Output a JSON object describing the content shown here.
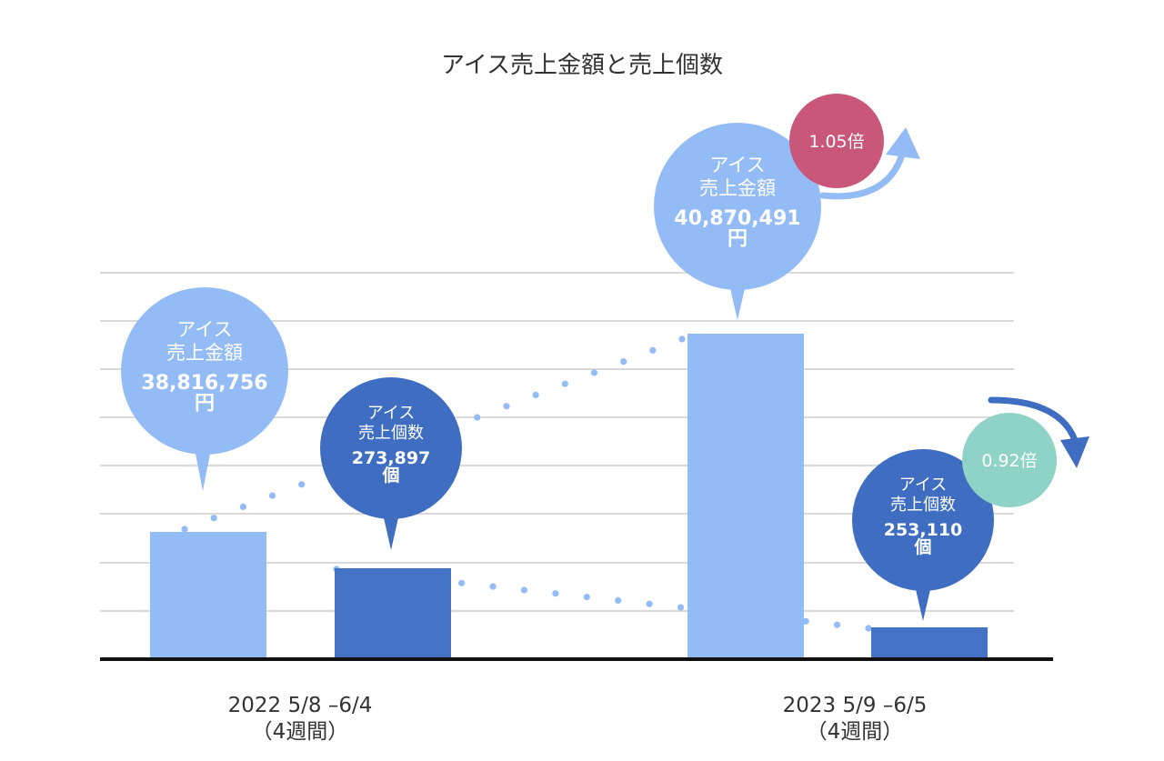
{
  "chart_data": {
    "type": "bar",
    "title": "アイス売上金額と売上個数",
    "categories": [
      {
        "line1": "2022 5/8 –6/4",
        "line2": "（4週間）"
      },
      {
        "line1": "2023 5/9 –6/5",
        "line2": "（4週間）"
      }
    ],
    "series": [
      {
        "key": "amount",
        "values": [
          38816756,
          40870491
        ],
        "bubbles": [
          {
            "line1": "アイス",
            "line2": "売上金額",
            "value": "38,816,756",
            "unit": "円"
          },
          {
            "line1": "アイス",
            "line2": "売上金額",
            "value": "40,870,491",
            "unit": "円"
          }
        ]
      },
      {
        "key": "count",
        "values": [
          273897,
          253110
        ],
        "bubbles": [
          {
            "line1": "アイス",
            "line2": "売上個数",
            "value": "273,897",
            "unit": "個"
          },
          {
            "line1": "アイス",
            "line2": "売上個数",
            "value": "253,110",
            "unit": "個"
          }
        ]
      }
    ],
    "ratios": [
      {
        "label": "1.05倍",
        "direction": "up"
      },
      {
        "label": "0.92倍",
        "direction": "down"
      }
    ],
    "grid": true,
    "colors": {
      "amount_bar": "#93BBF5",
      "count_bar": "#4472C4",
      "amount_bubble": "#93BBF5",
      "count_bubble": "#3E6DC2",
      "ratio_up": "#C9577A",
      "ratio_down": "#8FD3C7",
      "grid": "#D9D9D9",
      "axis": "#111111",
      "dots_amount": "#93BBF5",
      "dots_count": "#93BBF5",
      "arrow_up": "#93BBF5",
      "arrow_down": "#3E6DC2",
      "text": "#333333"
    },
    "icons": {
      "up": "curved-arrow-up-icon",
      "down": "curved-arrow-down-icon"
    }
  }
}
